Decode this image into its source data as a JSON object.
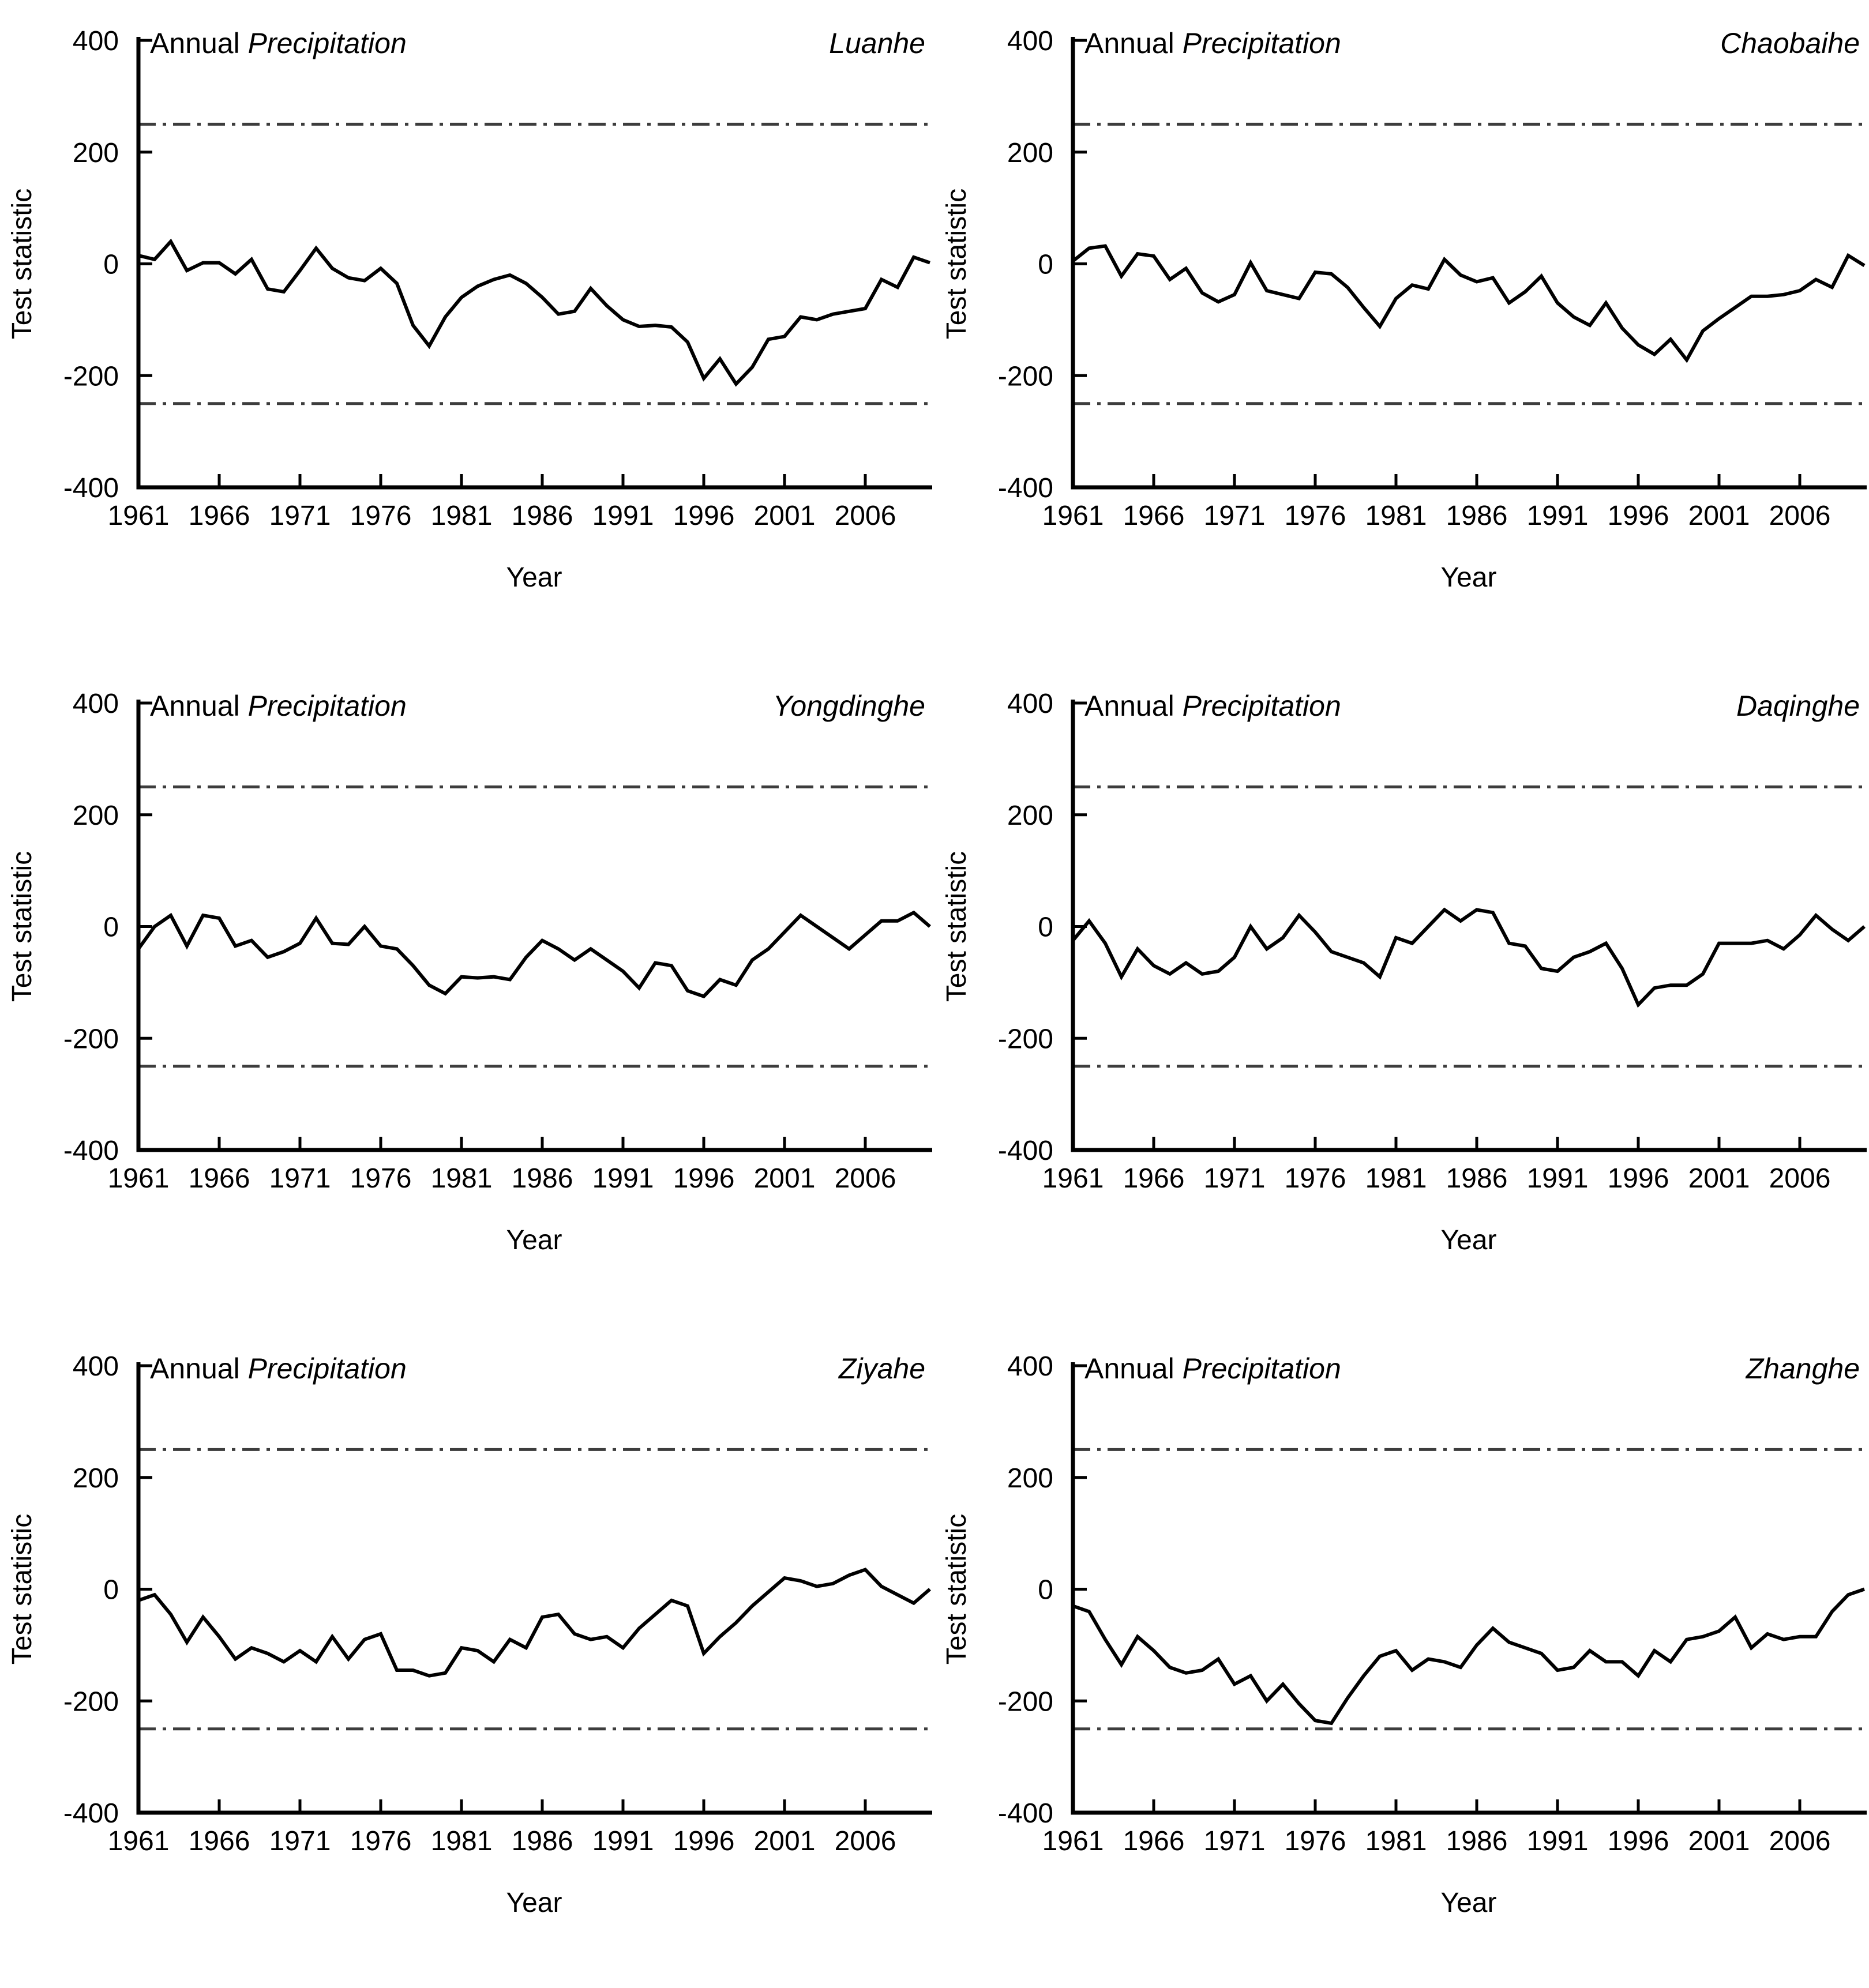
{
  "figure": {
    "title_regular": "Annual",
    "title_italic": "Precipitation",
    "xlabel": "Year",
    "ylabel": "Test statistic"
  },
  "axes": {
    "ylim": [
      -400,
      400
    ],
    "yticks": [
      400,
      200,
      0,
      -200,
      -400
    ],
    "xticks": [
      1961,
      1966,
      1971,
      1976,
      1981,
      1986,
      1991,
      1996,
      2001,
      2006
    ],
    "x_range": [
      1961,
      2010
    ],
    "grid": "off",
    "confidence_bounds": [
      250,
      -250
    ]
  },
  "colors": {
    "line": "#000000",
    "axis": "#000000",
    "bound_line": "#3d3d3d",
    "background": "#ffffff"
  },
  "chart_data": [
    {
      "type": "line",
      "river": "Luanhe",
      "title": "Annual Precipitation",
      "xlabel": "Year",
      "ylabel": "Test statistic",
      "ylim": [
        -400,
        400
      ],
      "upper_bound": 250,
      "lower_bound": -250,
      "years": [
        1961,
        1962,
        1963,
        1964,
        1965,
        1966,
        1967,
        1968,
        1969,
        1970,
        1971,
        1972,
        1973,
        1974,
        1975,
        1976,
        1977,
        1978,
        1979,
        1980,
        1981,
        1982,
        1983,
        1984,
        1985,
        1986,
        1987,
        1988,
        1989,
        1990,
        1991,
        1992,
        1993,
        1994,
        1995,
        1996,
        1997,
        1998,
        1999,
        2000,
        2001,
        2002,
        2003,
        2004,
        2005,
        2006,
        2007,
        2008,
        2009,
        2010
      ],
      "values": [
        15,
        8,
        40,
        -12,
        2,
        2,
        -18,
        8,
        -45,
        -50,
        -12,
        28,
        -8,
        -25,
        -30,
        -8,
        -35,
        -110,
        -147,
        -95,
        -60,
        -40,
        -28,
        -20,
        -35,
        -60,
        -90,
        -85,
        -44,
        -75,
        -100,
        -112,
        -110,
        -113,
        -140,
        -205,
        -170,
        -215,
        -185,
        -135,
        -130,
        -95,
        -100,
        -90,
        -85,
        -80,
        -28,
        -42,
        12,
        2
      ]
    },
    {
      "type": "line",
      "river": "Chaobaihe",
      "title": "Annual Precipitation",
      "xlabel": "Year",
      "ylabel": "Test statistic",
      "ylim": [
        -400,
        400
      ],
      "upper_bound": 250,
      "lower_bound": -250,
      "years": [
        1961,
        1962,
        1963,
        1964,
        1965,
        1966,
        1967,
        1968,
        1969,
        1970,
        1971,
        1972,
        1973,
        1974,
        1975,
        1976,
        1977,
        1978,
        1979,
        1980,
        1981,
        1982,
        1983,
        1984,
        1985,
        1986,
        1987,
        1988,
        1989,
        1990,
        1991,
        1992,
        1993,
        1994,
        1995,
        1996,
        1997,
        1998,
        1999,
        2000,
        2001,
        2002,
        2003,
        2004,
        2005,
        2006,
        2007,
        2008,
        2009,
        2010
      ],
      "values": [
        5,
        28,
        32,
        -22,
        18,
        14,
        -28,
        -8,
        -52,
        -68,
        -55,
        2,
        -48,
        -55,
        -62,
        -15,
        -18,
        -42,
        -78,
        -112,
        -62,
        -38,
        -45,
        8,
        -20,
        -32,
        -25,
        -70,
        -50,
        -22,
        -70,
        -95,
        -110,
        -70,
        -115,
        -145,
        -162,
        -135,
        -172,
        -120,
        -98,
        -78,
        -58,
        -58,
        -55,
        -48,
        -28,
        -42,
        15,
        -3
      ]
    },
    {
      "type": "line",
      "river": "Yongdinghe",
      "title": "Annual Precipitation",
      "xlabel": "Year",
      "ylabel": "Test statistic",
      "ylim": [
        -400,
        400
      ],
      "upper_bound": 250,
      "lower_bound": -250,
      "years": [
        1961,
        1962,
        1963,
        1964,
        1965,
        1966,
        1967,
        1968,
        1969,
        1970,
        1971,
        1972,
        1973,
        1974,
        1975,
        1976,
        1977,
        1978,
        1979,
        1980,
        1981,
        1982,
        1983,
        1984,
        1985,
        1986,
        1987,
        1988,
        1989,
        1990,
        1991,
        1992,
        1993,
        1994,
        1995,
        1996,
        1997,
        1998,
        1999,
        2000,
        2001,
        2002,
        2003,
        2004,
        2005,
        2006,
        2007,
        2008,
        2009,
        2010
      ],
      "values": [
        -40,
        0,
        20,
        -35,
        20,
        15,
        -35,
        -25,
        -55,
        -45,
        -30,
        15,
        -30,
        -32,
        0,
        -35,
        -40,
        -70,
        -105,
        -120,
        -90,
        -92,
        -90,
        -95,
        -55,
        -25,
        -40,
        -60,
        -40,
        -60,
        -80,
        -110,
        -65,
        -70,
        -115,
        -125,
        -95,
        -105,
        -60,
        -40,
        -10,
        20,
        0,
        -20,
        -40,
        -15,
        10,
        10,
        25,
        0
      ]
    },
    {
      "type": "line",
      "river": "Daqinghe",
      "title": "Annual Precipitation",
      "xlabel": "Year",
      "ylabel": "Test statistic",
      "ylim": [
        -400,
        400
      ],
      "upper_bound": 250,
      "lower_bound": -250,
      "years": [
        1961,
        1962,
        1963,
        1964,
        1965,
        1966,
        1967,
        1968,
        1969,
        1970,
        1971,
        1972,
        1973,
        1974,
        1975,
        1976,
        1977,
        1978,
        1979,
        1980,
        1981,
        1982,
        1983,
        1984,
        1985,
        1986,
        1987,
        1988,
        1989,
        1990,
        1991,
        1992,
        1993,
        1994,
        1995,
        1996,
        1997,
        1998,
        1999,
        2000,
        2001,
        2002,
        2003,
        2004,
        2005,
        2006,
        2007,
        2008,
        2009,
        2010
      ],
      "values": [
        -25,
        10,
        -30,
        -90,
        -40,
        -70,
        -85,
        -65,
        -85,
        -80,
        -55,
        0,
        -40,
        -20,
        20,
        -10,
        -45,
        -55,
        -65,
        -90,
        -20,
        -30,
        0,
        30,
        10,
        30,
        25,
        -30,
        -35,
        -75,
        -80,
        -55,
        -45,
        -30,
        -75,
        -140,
        -110,
        -105,
        -105,
        -85,
        -30,
        -30,
        -30,
        -25,
        -40,
        -15,
        20,
        -5,
        -25,
        0
      ]
    },
    {
      "type": "line",
      "river": "Ziyahe",
      "title": "Annual Precipitation",
      "xlabel": "Year",
      "ylabel": "Test statistic",
      "ylim": [
        -400,
        400
      ],
      "upper_bound": 250,
      "lower_bound": -250,
      "years": [
        1961,
        1962,
        1963,
        1964,
        1965,
        1966,
        1967,
        1968,
        1969,
        1970,
        1971,
        1972,
        1973,
        1974,
        1975,
        1976,
        1977,
        1978,
        1979,
        1980,
        1981,
        1982,
        1983,
        1984,
        1985,
        1986,
        1987,
        1988,
        1989,
        1990,
        1991,
        1992,
        1993,
        1994,
        1995,
        1996,
        1997,
        1998,
        1999,
        2000,
        2001,
        2002,
        2003,
        2004,
        2005,
        2006,
        2007,
        2008,
        2009,
        2010
      ],
      "values": [
        -20,
        -10,
        -45,
        -95,
        -50,
        -85,
        -125,
        -105,
        -115,
        -130,
        -110,
        -130,
        -85,
        -125,
        -90,
        -80,
        -145,
        -145,
        -155,
        -150,
        -105,
        -110,
        -130,
        -90,
        -105,
        -50,
        -45,
        -80,
        -90,
        -85,
        -105,
        -70,
        -45,
        -20,
        -30,
        -115,
        -85,
        -60,
        -30,
        -5,
        20,
        15,
        5,
        10,
        25,
        35,
        5,
        -10,
        -25,
        0
      ]
    },
    {
      "type": "line",
      "river": "Zhanghe",
      "title": "Annual Precipitation",
      "xlabel": "Year",
      "ylabel": "Test statistic",
      "ylim": [
        -400,
        400
      ],
      "upper_bound": 250,
      "lower_bound": -250,
      "years": [
        1961,
        1962,
        1963,
        1964,
        1965,
        1966,
        1967,
        1968,
        1969,
        1970,
        1971,
        1972,
        1973,
        1974,
        1975,
        1976,
        1977,
        1978,
        1979,
        1980,
        1981,
        1982,
        1983,
        1984,
        1985,
        1986,
        1987,
        1988,
        1989,
        1990,
        1991,
        1992,
        1993,
        1994,
        1995,
        1996,
        1997,
        1998,
        1999,
        2000,
        2001,
        2002,
        2003,
        2004,
        2005,
        2006,
        2007,
        2008,
        2009,
        2010
      ],
      "values": [
        -30,
        -40,
        -90,
        -135,
        -85,
        -110,
        -140,
        -150,
        -145,
        -125,
        -170,
        -155,
        -200,
        -170,
        -205,
        -235,
        -240,
        -195,
        -155,
        -120,
        -110,
        -145,
        -125,
        -130,
        -140,
        -100,
        -70,
        -95,
        -105,
        -115,
        -145,
        -140,
        -110,
        -130,
        -130,
        -155,
        -110,
        -130,
        -90,
        -85,
        -75,
        -50,
        -105,
        -80,
        -90,
        -85,
        -85,
        -40,
        -10,
        0
      ]
    }
  ]
}
